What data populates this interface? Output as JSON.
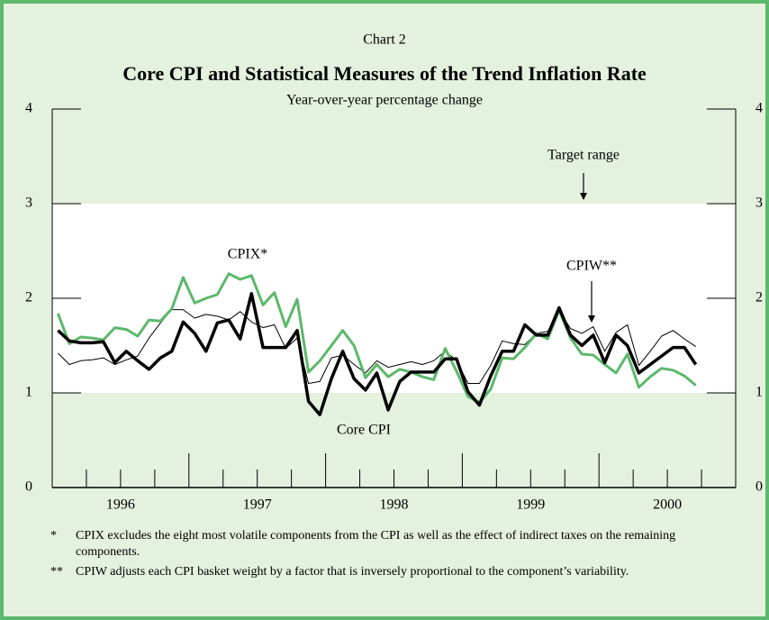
{
  "label": "Chart 2",
  "chart_data": {
    "type": "line",
    "title": "Core CPI and Statistical Measures of the Trend Inflation Rate",
    "subtitle": "Year-over-year percentage change",
    "ylim": [
      0,
      4
    ],
    "yticks": [
      0,
      1,
      2,
      3,
      4
    ],
    "xlim": [
      1996,
      2001
    ],
    "xticks": [
      {
        "value": 1996.5,
        "label": "1996"
      },
      {
        "value": 1997.5,
        "label": "1997"
      },
      {
        "value": 1998.5,
        "label": "1998"
      },
      {
        "value": 1999.5,
        "label": "1999"
      },
      {
        "value": 2000.5,
        "label": "2000"
      }
    ],
    "target_range": [
      1,
      3
    ],
    "annotations": [
      "Target range",
      "CPIX*",
      "CPIW**",
      "Core CPI"
    ],
    "x": [
      1996.042,
      1996.125,
      1996.208,
      1996.292,
      1996.375,
      1996.458,
      1996.542,
      1996.625,
      1996.708,
      1996.792,
      1996.875,
      1996.958,
      1997.042,
      1997.125,
      1997.208,
      1997.292,
      1997.375,
      1997.458,
      1997.542,
      1997.625,
      1997.708,
      1997.792,
      1997.875,
      1997.958,
      1998.042,
      1998.125,
      1998.208,
      1998.292,
      1998.375,
      1998.458,
      1998.542,
      1998.625,
      1998.708,
      1998.792,
      1998.875,
      1998.958,
      1999.042,
      1999.125,
      1999.208,
      1999.292,
      1999.375,
      1999.458,
      1999.542,
      1999.625,
      1999.708,
      1999.792,
      1999.875,
      1999.958,
      2000.042,
      2000.125,
      2000.208,
      2000.292,
      2000.375,
      2000.458,
      2000.542,
      2000.625,
      2000.708
    ],
    "series": [
      {
        "name": "CPIW**",
        "color": "#000000",
        "width": 1,
        "values": [
          1.42,
          1.3,
          1.34,
          1.35,
          1.37,
          1.3,
          1.35,
          1.39,
          1.58,
          1.74,
          1.88,
          1.88,
          1.79,
          1.83,
          1.81,
          1.77,
          1.86,
          1.75,
          1.69,
          1.72,
          1.47,
          1.58,
          1.1,
          1.12,
          1.37,
          1.4,
          1.3,
          1.21,
          1.34,
          1.27,
          1.3,
          1.33,
          1.3,
          1.34,
          1.44,
          1.34,
          1.1,
          1.1,
          1.29,
          1.55,
          1.52,
          1.51,
          1.63,
          1.65,
          1.87,
          1.68,
          1.63,
          1.7,
          1.44,
          1.64,
          1.72,
          1.29,
          1.44,
          1.6,
          1.66,
          1.57,
          1.49
        ]
      },
      {
        "name": "CPIX*",
        "color": "#5cb86b",
        "width": 3,
        "values": [
          1.84,
          1.52,
          1.59,
          1.58,
          1.56,
          1.69,
          1.67,
          1.6,
          1.77,
          1.76,
          1.89,
          2.22,
          1.95,
          2.0,
          2.04,
          2.26,
          2.2,
          2.24,
          1.93,
          2.06,
          1.7,
          1.99,
          1.22,
          1.34,
          1.5,
          1.66,
          1.5,
          1.16,
          1.3,
          1.17,
          1.25,
          1.22,
          1.17,
          1.14,
          1.47,
          1.23,
          0.96,
          0.9,
          1.04,
          1.37,
          1.36,
          1.48,
          1.63,
          1.57,
          1.87,
          1.58,
          1.41,
          1.4,
          1.3,
          1.21,
          1.41,
          1.06,
          1.17,
          1.26,
          1.24,
          1.18,
          1.08
        ]
      },
      {
        "name": "Core CPI",
        "color": "#000000",
        "width": 3.5,
        "values": [
          1.66,
          1.55,
          1.53,
          1.53,
          1.54,
          1.32,
          1.44,
          1.34,
          1.25,
          1.37,
          1.44,
          1.75,
          1.63,
          1.44,
          1.74,
          1.77,
          1.57,
          2.05,
          1.48,
          1.48,
          1.48,
          1.66,
          0.91,
          0.77,
          1.15,
          1.44,
          1.15,
          1.03,
          1.21,
          0.82,
          1.12,
          1.22,
          1.22,
          1.22,
          1.36,
          1.36,
          1.01,
          0.87,
          1.18,
          1.44,
          1.44,
          1.72,
          1.61,
          1.61,
          1.9,
          1.61,
          1.5,
          1.61,
          1.32,
          1.61,
          1.5,
          1.21,
          1.3,
          1.39,
          1.48,
          1.48,
          1.3
        ]
      }
    ]
  },
  "footnotes": [
    {
      "marker": "*",
      "text": "CPIX excludes the eight most volatile components from the CPI as well as the effect of indirect taxes on the remaining components."
    },
    {
      "marker": "**",
      "text": "CPIW adjusts each CPI basket weight by a factor that is inversely proportional to the component’s variability."
    }
  ]
}
